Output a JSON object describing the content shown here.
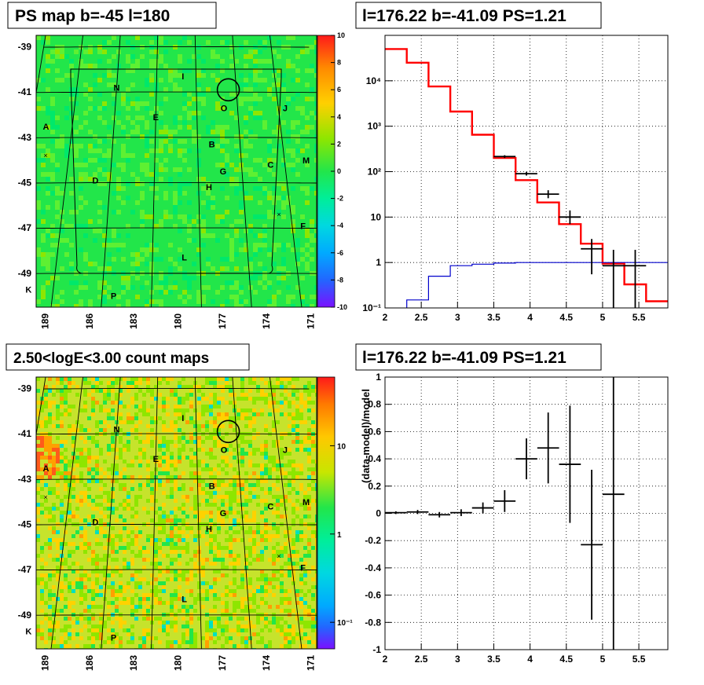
{
  "panels": {
    "ps_map": {
      "title": "PS map b=-45 l=180",
      "lat_ticks": [
        "-39",
        "-41",
        "-43",
        "-45",
        "-47",
        "-49"
      ],
      "lon_ticks": [
        "189",
        "186",
        "183",
        "180",
        "177",
        "174",
        "171"
      ],
      "colorbar_ticks": [
        "10",
        "8",
        "6",
        "4",
        "2",
        "0",
        "-2",
        "-4",
        "-6",
        "-8",
        "-10"
      ],
      "base_color": "#22e64a"
    },
    "count_map": {
      "title": "2.50<logE<3.00 count maps",
      "lat_ticks": [
        "-39",
        "-41",
        "-43",
        "-45",
        "-47",
        "-49"
      ],
      "lon_ticks": [
        "189",
        "186",
        "183",
        "180",
        "177",
        "174",
        "171"
      ],
      "colorbar_ticks": [
        "10",
        "1",
        "10⁻¹"
      ]
    },
    "spectrum": {
      "title": "l=176.22 b=-41.09 PS=1.21"
    },
    "residual": {
      "title": "l=176.22 b=-41.09 PS=1.21"
    }
  },
  "sources": [
    "I",
    "N",
    "O",
    "J",
    "A",
    "E",
    "B",
    "M",
    "C",
    "G",
    "D",
    "H",
    "F",
    "L",
    "K",
    "P"
  ],
  "chart_data": [
    {
      "type": "heatmap",
      "title": "PS map b=-45 l=180",
      "xlabel": "",
      "ylabel": "",
      "xlim": [
        189.5,
        170.5
      ],
      "ylim": [
        -50.5,
        -38.5
      ],
      "colorbar_range": [
        -10,
        10
      ],
      "sources": [
        {
          "name": "I",
          "l": 179.5,
          "b": -40.3
        },
        {
          "name": "N",
          "l": 184.5,
          "b": -40.8
        },
        {
          "name": "O",
          "l": 176.5,
          "b": -41.7
        },
        {
          "name": "J",
          "l": 172.0,
          "b": -41.7
        },
        {
          "name": "A",
          "l": 189.4,
          "b": -42.5
        },
        {
          "name": "E",
          "l": 181.5,
          "b": -42.1
        },
        {
          "name": "B",
          "l": 177.5,
          "b": -43.3
        },
        {
          "name": "M",
          "l": 171.0,
          "b": -44.0
        },
        {
          "name": "C",
          "l": 173.5,
          "b": -44.2
        },
        {
          "name": "G",
          "l": 176.8,
          "b": -44.5
        },
        {
          "name": "D",
          "l": 185.5,
          "b": -44.9
        },
        {
          "name": "H",
          "l": 177.8,
          "b": -45.2
        },
        {
          "name": "F",
          "l": 171.8,
          "b": -46.9
        },
        {
          "name": "L",
          "l": 179.5,
          "b": -48.3
        },
        {
          "name": "K",
          "l": 189.0,
          "b": -49.7
        },
        {
          "name": "P",
          "l": 183.8,
          "b": -50.0
        }
      ],
      "circle": {
        "l": 176.1,
        "b": -40.9
      }
    },
    {
      "type": "heatmap",
      "title": "2.50<logE<3.00 count maps",
      "xlim": [
        189.5,
        170.5
      ],
      "ylim": [
        -50.5,
        -38.5
      ],
      "colorbar_scale": "log",
      "colorbar_range": [
        0.05,
        60
      ],
      "colorbar_tick_values": [
        10,
        1,
        0.1
      ]
    },
    {
      "type": "line",
      "title": "l=176.22 b=-41.09 PS=1.21",
      "xlim": [
        2,
        5.9
      ],
      "ylim": [
        0.1,
        100000
      ],
      "yscale": "log",
      "grid": true,
      "x_ticks": [
        2,
        2.5,
        3,
        3.5,
        4,
        4.5,
        5,
        5.5
      ],
      "y_ticks": [
        {
          "value": 0.1,
          "label": "10⁻¹"
        },
        {
          "value": 1,
          "label": "1"
        },
        {
          "value": 10,
          "label": "10"
        },
        {
          "value": 100,
          "label": "10²"
        },
        {
          "value": 1000,
          "label": "10³"
        },
        {
          "value": 10000,
          "label": "10⁴"
        }
      ],
      "series": [
        {
          "kind": "step",
          "color": "#ff0000",
          "edges": [
            2,
            2.3,
            2.6,
            2.9,
            3.2,
            3.5,
            3.8,
            4.1,
            4.4,
            4.7,
            5.0,
            5.3,
            5.6,
            5.9
          ],
          "values": [
            50000,
            25000,
            7500,
            2100,
            650,
            200,
            65,
            21,
            7,
            2.6,
            0.95,
            0.33,
            0.14
          ]
        },
        {
          "kind": "step",
          "color": "#0000cc",
          "edges": [
            2.0,
            2.3,
            2.6,
            2.9,
            3.2,
            3.5,
            3.8,
            4.1,
            4.4,
            4.7,
            5.0,
            5.3,
            5.6,
            5.9
          ],
          "values": [
            0.06,
            0.15,
            0.5,
            0.85,
            0.92,
            0.97,
            1.0,
            1.0,
            1.0,
            1.0,
            1.0,
            1.0,
            1.0
          ],
          "start_x": 2.15
        },
        {
          "kind": "errorbar",
          "color": "#000000",
          "points": [
            {
              "x": 3.65,
              "y": 215,
              "xerr": 0.15,
              "ylo": 200,
              "yhi": 230
            },
            {
              "x": 3.95,
              "y": 90,
              "xerr": 0.15,
              "ylo": 82,
              "yhi": 99
            },
            {
              "x": 4.25,
              "y": 32,
              "xerr": 0.15,
              "ylo": 26,
              "yhi": 39
            },
            {
              "x": 4.55,
              "y": 10,
              "xerr": 0.15,
              "ylo": 7,
              "yhi": 14
            },
            {
              "x": 4.85,
              "y": 2.0,
              "xerr": 0.15,
              "ylo": 0.55,
              "yhi": 3.3
            },
            {
              "x": 5.15,
              "y": 0.85,
              "xerr": 0.15,
              "ylo": 0.1,
              "yhi": 1.9
            },
            {
              "x": 5.45,
              "y": 0.85,
              "xerr": 0.15,
              "ylo": 0.1,
              "yhi": 1.9
            }
          ]
        }
      ]
    },
    {
      "type": "scatter",
      "title": "l=176.22 b=-41.09 PS=1.21",
      "ylabel": "(data-model)/model",
      "xlim": [
        2,
        5.9
      ],
      "ylim": [
        -1,
        1
      ],
      "grid": true,
      "x_ticks": [
        2,
        2.5,
        3,
        3.5,
        4,
        4.5,
        5,
        5.5
      ],
      "y_ticks": [
        -1,
        -0.8,
        -0.6,
        -0.4,
        -0.2,
        0,
        0.2,
        0.4,
        0.6,
        0.8,
        1
      ],
      "points": [
        {
          "x": 2.15,
          "y": 0.005,
          "xerr": 0.15,
          "yerr": 0.01
        },
        {
          "x": 2.45,
          "y": 0.01,
          "xerr": 0.15,
          "yerr": 0.015
        },
        {
          "x": 2.75,
          "y": -0.01,
          "xerr": 0.15,
          "yerr": 0.02
        },
        {
          "x": 3.05,
          "y": 0.005,
          "xerr": 0.15,
          "yerr": 0.025
        },
        {
          "x": 3.35,
          "y": 0.04,
          "xerr": 0.15,
          "yerr": 0.04
        },
        {
          "x": 3.65,
          "y": 0.09,
          "xerr": 0.15,
          "yerr": 0.08
        },
        {
          "x": 3.95,
          "y": 0.4,
          "xerr": 0.15,
          "yerr": 0.15
        },
        {
          "x": 4.25,
          "y": 0.48,
          "xerr": 0.15,
          "yerr": 0.26
        },
        {
          "x": 4.55,
          "y": 0.36,
          "xerr": 0.15,
          "yerr": 0.43
        },
        {
          "x": 4.85,
          "y": -0.23,
          "xerr": 0.15,
          "yerr": 0.55
        },
        {
          "x": 5.15,
          "y": 0.14,
          "xerr": 0.15,
          "yerr": 1.2
        }
      ]
    }
  ]
}
